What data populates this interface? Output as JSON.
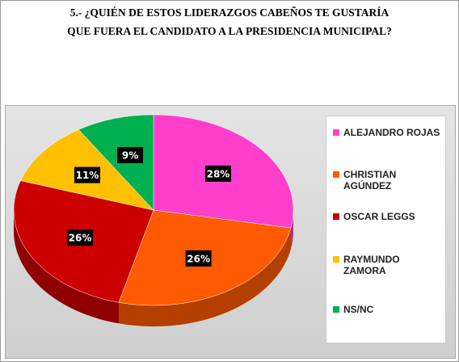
{
  "chart_data": {
    "type": "pie",
    "title": [
      "5.- ¿QUIÉN  DE  ESTOS LIDERAZGOS CABEÑOS TE GUSTARÍA",
      "QUE FUERA EL CANDIDATO A LA PRESIDENCIA MUNICIPAL?"
    ],
    "categories": [
      "ALEJANDRO ROJAS",
      "CHRISTIAN AGÚNDEZ",
      "OSCAR LEGGS",
      "RAYMUNDO ZAMORA",
      "NS/NC"
    ],
    "values": [
      28,
      26,
      26,
      11,
      9
    ],
    "value_labels": [
      "28%",
      "26%",
      "26%",
      "11%",
      "9%"
    ],
    "colors": [
      "#ff3fcc",
      "#ff5a00",
      "#cc0000",
      "#ffc000",
      "#00b050"
    ],
    "legend": "right"
  }
}
